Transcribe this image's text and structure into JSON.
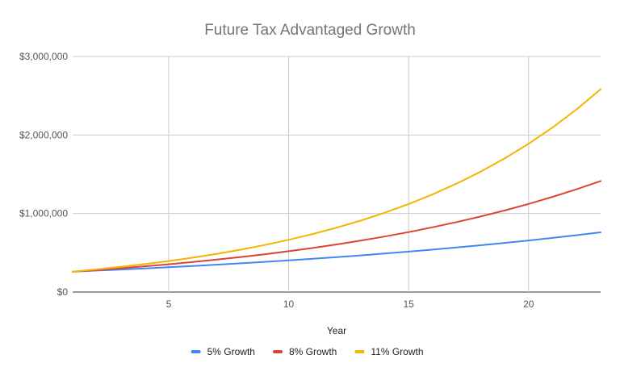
{
  "chart_data": {
    "type": "line",
    "title": "Future Tax Advantaged Growth",
    "xlabel": "Year",
    "ylabel": "",
    "xlim": [
      1,
      23
    ],
    "ylim": [
      0,
      3000000
    ],
    "x_ticks": [
      5,
      10,
      15,
      20
    ],
    "x_tick_labels": [
      "5",
      "10",
      "15",
      "20"
    ],
    "y_ticks": [
      0,
      1000000,
      2000000,
      3000000
    ],
    "y_tick_labels": [
      "$0",
      "$1,000,000",
      "$2,000,000",
      "$3,000,000"
    ],
    "grid": true,
    "legend_position": "bottom",
    "x": [
      1,
      2,
      3,
      4,
      5,
      6,
      7,
      8,
      9,
      10,
      11,
      12,
      13,
      14,
      15,
      16,
      17,
      18,
      19,
      20,
      21,
      22,
      23
    ],
    "series": [
      {
        "name": "5% Growth",
        "color": "#4285f4",
        "values": [
          260000,
          273000,
          286650,
          300983,
          316032,
          331833,
          348425,
          365846,
          384138,
          403345,
          423512,
          444688,
          466922,
          490269,
          514782,
          540521,
          567547,
          595924,
          625721,
          657007,
          689857,
          724350,
          760568
        ]
      },
      {
        "name": "8% Growth",
        "color": "#db4437",
        "values": [
          260000,
          280800,
          303264,
          327525,
          353727,
          382025,
          412587,
          445594,
          481242,
          519741,
          561321,
          606226,
          654724,
          707102,
          763670,
          824764,
          890745,
          962005,
          1038965,
          1122082,
          1211849,
          1308796,
          1413500
        ]
      },
      {
        "name": "11% Growth",
        "color": "#f4b400",
        "values": [
          260000,
          288600,
          320346,
          355584,
          394698,
          438115,
          486308,
          539802,
          599180,
          665090,
          738250,
          819457,
          909597,
          1009653,
          1120715,
          1243993,
          1380832,
          1532724,
          1701323,
          1888469,
          2096201,
          2326783,
          2582730
        ]
      }
    ]
  }
}
